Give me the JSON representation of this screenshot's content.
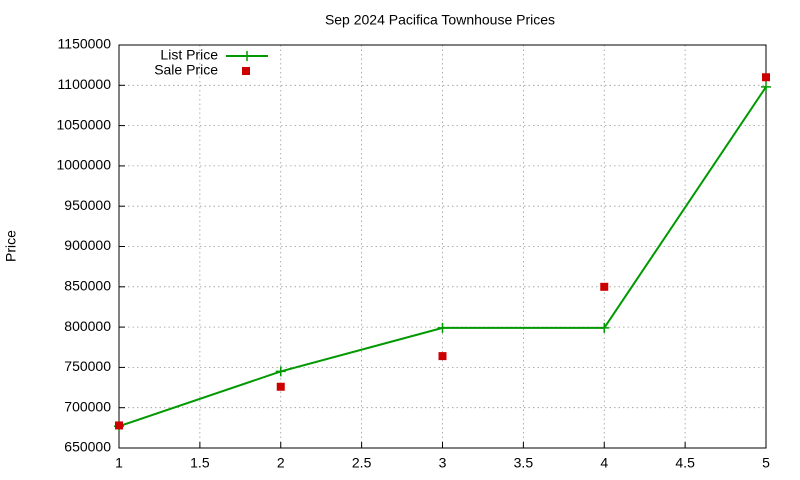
{
  "chart_data": {
    "type": "line",
    "title": "Sep 2024 Pacifica Townhouse Prices",
    "y_label": "Price",
    "x": [
      1,
      2,
      3,
      4,
      5
    ],
    "series": [
      {
        "name": "List Price",
        "color": "#009900",
        "style": "linespoints",
        "values": [
          677000,
          745000,
          799000,
          799000,
          1098000
        ]
      },
      {
        "name": "Sale Price",
        "color": "#cc0000",
        "style": "points",
        "values": [
          678000,
          726000,
          764000,
          850000,
          1110000
        ]
      }
    ],
    "xlim": [
      1,
      5
    ],
    "xticks": [
      1,
      1.5,
      2,
      2.5,
      3,
      3.5,
      4,
      4.5,
      5
    ],
    "ylim": [
      650000,
      1150000
    ],
    "yticks": [
      650000,
      700000,
      750000,
      800000,
      850000,
      900000,
      950000,
      1000000,
      1050000,
      1100000,
      1150000
    ],
    "grid": true,
    "legend": "top-left"
  }
}
